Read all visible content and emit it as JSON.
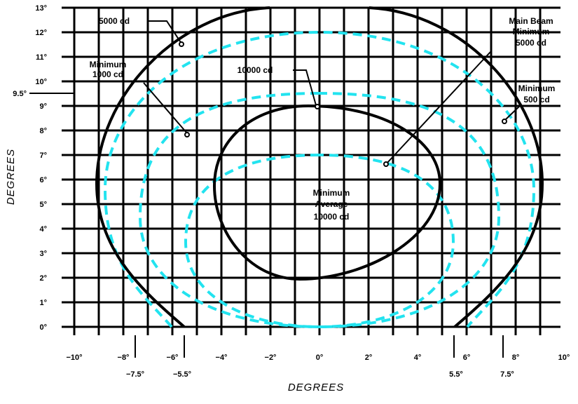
{
  "y_axis": {
    "title": "DEGREES",
    "ticks": [
      "0°",
      "1°",
      "2°",
      "3°",
      "4°",
      "5°",
      "6°",
      "7°",
      "8°",
      "9°",
      "10°",
      "11°",
      "12°",
      "13°"
    ],
    "extra_tick": "9.5°"
  },
  "x_axis": {
    "title": "DEGREES",
    "ticks": [
      "−10°",
      "−8°",
      "−6°",
      "−4°",
      "−2°",
      "0°",
      "2°",
      "4°",
      "6°",
      "8°",
      "10°"
    ],
    "extra_ticks": [
      "−7.5°",
      "−5.5°",
      "5.5°",
      "7.5°"
    ]
  },
  "labels": {
    "cd5000": "5000 cd",
    "min1000_line1": "Minimum",
    "min1000_line2": "1000 cd",
    "cd10000": "10000 cd",
    "main_beam_line1": "Main Beam",
    "main_beam_line2": "Minimum",
    "main_beam_line3": "5000 cd",
    "min500_line1": "Minimum",
    "min500_line2": "500 cd",
    "center_line1": "Minimum",
    "center_line2": "Average",
    "center_line3": "10000 cd"
  },
  "colors": {
    "solid_contour": "#000000",
    "dashed_contour": "#22e3ef",
    "grid": "#000000"
  }
}
